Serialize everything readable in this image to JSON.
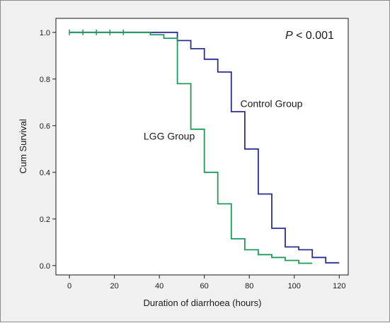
{
  "chart_data": {
    "type": "line",
    "subtype": "kaplan-meier step",
    "xlabel": "Duration of diarrhoea (hours)",
    "ylabel": "Cum Survival",
    "xlim": [
      -6,
      124
    ],
    "ylim": [
      -0.04,
      1.06
    ],
    "xticks": [
      0,
      20,
      40,
      60,
      80,
      100,
      120
    ],
    "yticks": [
      0.0,
      0.2,
      0.4,
      0.6,
      0.8,
      1.0
    ],
    "ytick_labels": [
      "0.0",
      "0.2",
      "0.4",
      "0.6",
      "0.8",
      "1.0"
    ],
    "p_value": {
      "symbol": "P",
      "text": " < 0.001"
    },
    "grid": false,
    "series": [
      {
        "name": "Control Group",
        "color": "#2b2f8f",
        "x": [
          0,
          48,
          48,
          54,
          54,
          60,
          60,
          66,
          66,
          72,
          72,
          78,
          78,
          84,
          84,
          90,
          90,
          96,
          96,
          102,
          102,
          108,
          108,
          114,
          114,
          120
        ],
        "y": [
          1.0,
          1.0,
          0.965,
          0.965,
          0.93,
          0.93,
          0.885,
          0.885,
          0.83,
          0.83,
          0.66,
          0.66,
          0.5,
          0.5,
          0.307,
          0.307,
          0.16,
          0.16,
          0.08,
          0.08,
          0.068,
          0.068,
          0.035,
          0.035,
          0.012,
          0.012
        ]
      },
      {
        "name": "LGG Group",
        "color": "#1f9a5a",
        "x": [
          0,
          36,
          36,
          42,
          42,
          48,
          48,
          54,
          54,
          60,
          60,
          66,
          66,
          72,
          72,
          78,
          78,
          84,
          84,
          90,
          90,
          96,
          96,
          102,
          102,
          108
        ],
        "y": [
          1.0,
          1.0,
          0.99,
          0.99,
          0.975,
          0.975,
          0.78,
          0.78,
          0.585,
          0.585,
          0.4,
          0.4,
          0.265,
          0.265,
          0.115,
          0.115,
          0.068,
          0.068,
          0.047,
          0.047,
          0.035,
          0.035,
          0.022,
          0.022,
          0.01,
          0.01
        ],
        "censor_x": [
          0,
          6,
          12,
          18,
          24
        ]
      }
    ],
    "annotations": [
      {
        "text": "Control Group",
        "x": 76,
        "y": 0.68
      },
      {
        "text": "LGG Group",
        "x": 33,
        "y": 0.54
      }
    ]
  }
}
